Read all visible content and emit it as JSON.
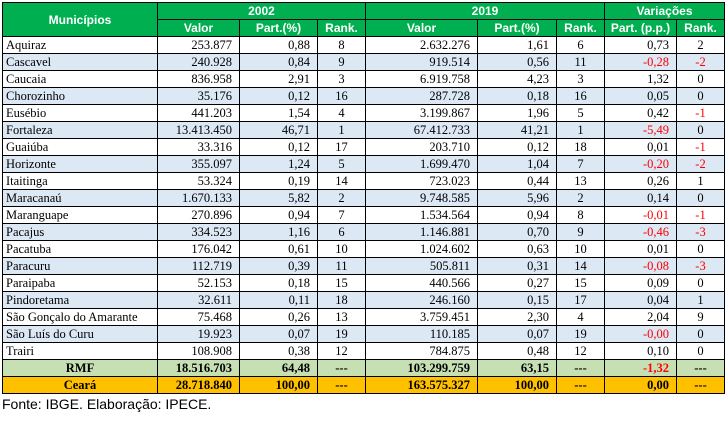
{
  "header": {
    "municipios": "Municípios",
    "y2002": "2002",
    "y2019": "2019",
    "variacoes": "Variações",
    "valor": "Valor",
    "part": "Part.(%)",
    "rank": "Rank.",
    "part_pp": "Part. (p.p.)"
  },
  "rows": [
    [
      "Aquiraz",
      "253.877",
      "0,88",
      "8",
      "2.632.276",
      "1,61",
      "6",
      "0,73",
      "2"
    ],
    [
      "Cascavel",
      "240.928",
      "0,84",
      "9",
      "919.514",
      "0,56",
      "11",
      "-0,28",
      "-2"
    ],
    [
      "Caucaia",
      "836.958",
      "2,91",
      "3",
      "6.919.758",
      "4,23",
      "3",
      "1,32",
      "0"
    ],
    [
      "Chorozinho",
      "35.176",
      "0,12",
      "16",
      "287.728",
      "0,18",
      "16",
      "0,05",
      "0"
    ],
    [
      "Eusébio",
      "441.203",
      "1,54",
      "4",
      "3.199.867",
      "1,96",
      "5",
      "0,42",
      "-1"
    ],
    [
      "Fortaleza",
      "13.413.450",
      "46,71",
      "1",
      "67.412.733",
      "41,21",
      "1",
      "-5,49",
      "0"
    ],
    [
      "Guaiúba",
      "33.316",
      "0,12",
      "17",
      "203.710",
      "0,12",
      "18",
      "0,01",
      "-1"
    ],
    [
      "Horizonte",
      "355.097",
      "1,24",
      "5",
      "1.699.470",
      "1,04",
      "7",
      "-0,20",
      "-2"
    ],
    [
      "Itaitinga",
      "53.324",
      "0,19",
      "14",
      "723.023",
      "0,44",
      "13",
      "0,26",
      "1"
    ],
    [
      "Maracanaú",
      "1.670.133",
      "5,82",
      "2",
      "9.748.585",
      "5,96",
      "2",
      "0,14",
      "0"
    ],
    [
      "Maranguape",
      "270.896",
      "0,94",
      "7",
      "1.534.564",
      "0,94",
      "8",
      "-0,01",
      "-1"
    ],
    [
      "Pacajus",
      "334.523",
      "1,16",
      "6",
      "1.146.881",
      "0,70",
      "9",
      "-0,46",
      "-3"
    ],
    [
      "Pacatuba",
      "176.042",
      "0,61",
      "10",
      "1.024.602",
      "0,63",
      "10",
      "0,01",
      "0"
    ],
    [
      "Paracuru",
      "112.719",
      "0,39",
      "11",
      "505.811",
      "0,31",
      "14",
      "-0,08",
      "-3"
    ],
    [
      "Paraipaba",
      "52.153",
      "0,18",
      "15",
      "440.566",
      "0,27",
      "15",
      "0,09",
      "0"
    ],
    [
      "Pindoretama",
      "32.611",
      "0,11",
      "18",
      "246.160",
      "0,15",
      "17",
      "0,04",
      "1"
    ],
    [
      "São Gonçalo do Amarante",
      "75.468",
      "0,26",
      "13",
      "3.759.451",
      "2,30",
      "4",
      "2,04",
      "9"
    ],
    [
      "São Luís do Curu",
      "19.923",
      "0,07",
      "19",
      "110.185",
      "0,07",
      "19",
      "-0,00",
      "0"
    ],
    [
      "Trairi",
      "108.908",
      "0,38",
      "12",
      "784.875",
      "0,48",
      "12",
      "0,10",
      "0"
    ]
  ],
  "totals": [
    [
      "RMF",
      "18.516.703",
      "64,48",
      "---",
      "103.299.759",
      "63,15",
      "---",
      "-1,32",
      "---"
    ],
    [
      "Ceará",
      "28.718.840",
      "100,00",
      "---",
      "163.575.327",
      "100,00",
      "---",
      "0,00",
      "---"
    ]
  ],
  "footer": "Fonte: IBGE. Elaboração: IPECE."
}
